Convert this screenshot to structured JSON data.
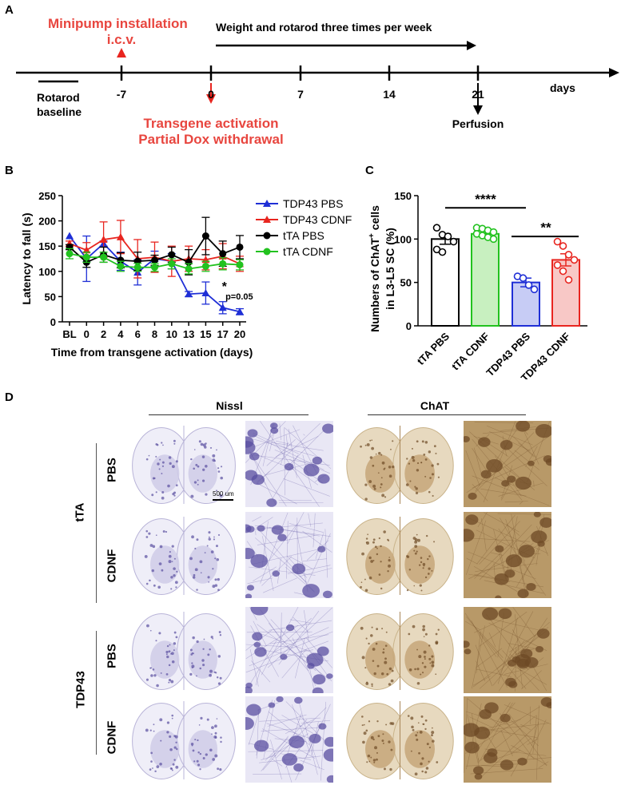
{
  "panels": {
    "a": "A",
    "b": "B",
    "c": "C",
    "d": "D"
  },
  "timeline": {
    "minipump_line1": "Minipump installation",
    "minipump_line2": "i.c.v.",
    "weight_rotarod": "Weight and rotarod three times per week",
    "ticks": [
      "-7",
      "0",
      "7",
      "14",
      "21"
    ],
    "days_label": "days",
    "baseline_line1": "Rotarod",
    "baseline_line2": "baseline",
    "transgene_line1": "Transgene activation",
    "transgene_line2": "Partial Dox withdrawal",
    "perfusion": "Perfusion",
    "red_color": "#e8463f"
  },
  "chart_data": [
    {
      "type": "line",
      "panel": "B",
      "xlabel": "Time from transgene activation (days)",
      "ylabel": "Latency to fall (s)",
      "categories": [
        "BL",
        "0",
        "2",
        "4",
        "6",
        "8",
        "10",
        "13",
        "15",
        "17",
        "20"
      ],
      "yticks": [
        "0",
        "50",
        "100",
        "150",
        "200",
        "250"
      ],
      "ylim": [
        0,
        250
      ],
      "legend_position": "right",
      "series": [
        {
          "name": "TDP43 PBS",
          "color": "#1f2fd6",
          "marker": "triangle",
          "values": [
            170,
            125,
            155,
            120,
            98,
            125,
            120,
            55,
            57,
            28,
            20
          ],
          "errors": [
            0,
            45,
            5,
            18,
            25,
            15,
            15,
            5,
            22,
            12,
            6
          ]
        },
        {
          "name": "TDP43 CDNF",
          "color": "#e8251f",
          "marker": "triangle",
          "values": [
            155,
            142,
            163,
            168,
            125,
            128,
            120,
            125,
            123,
            130,
            115
          ],
          "errors": [
            5,
            15,
            35,
            33,
            38,
            30,
            30,
            25,
            20,
            25,
            15
          ]
        },
        {
          "name": "tTA PBS",
          "color": "#000000",
          "marker": "circle",
          "values": [
            148,
            118,
            133,
            122,
            120,
            122,
            133,
            118,
            170,
            135,
            148
          ],
          "errors": [
            5,
            10,
            15,
            15,
            18,
            10,
            15,
            25,
            37,
            25,
            23
          ]
        },
        {
          "name": "tTA CDNF",
          "color": "#22c21f",
          "marker": "circle",
          "values": [
            135,
            128,
            128,
            110,
            108,
            108,
            115,
            105,
            110,
            115,
            113
          ],
          "errors": [
            10,
            10,
            10,
            10,
            8,
            8,
            10,
            10,
            10,
            12,
            10
          ]
        }
      ],
      "annotations": [
        {
          "text": "*",
          "at": "17"
        },
        {
          "text": "p=0.05",
          "at": "17-20"
        }
      ]
    },
    {
      "type": "bar",
      "panel": "C",
      "ylabel_line1": "Numbers of ChAT",
      "ylabel_sup": "+",
      "ylabel_rest": " cells",
      "ylabel_line2": "in L3-L5 SC (%)",
      "categories": [
        "tTA PBS",
        "tTA CDNF",
        "TDP43 PBS",
        "TDP43 CDNF"
      ],
      "values": [
        100,
        106,
        50,
        76
      ],
      "errors": [
        6,
        4,
        5,
        7
      ],
      "colors": [
        "#000000",
        "#22c21f",
        "#1f2fd6",
        "#e8251f"
      ],
      "fills": [
        "#ffffff",
        "#c8f0c0",
        "#c7ccf5",
        "#f8c8c6"
      ],
      "points": [
        [
          113,
          105,
          103,
          97,
          88,
          85
        ],
        [
          113,
          112,
          110,
          108,
          106,
          104,
          102,
          100
        ],
        [
          57,
          55,
          47,
          42
        ],
        [
          97,
          92,
          82,
          76,
          70,
          63,
          53
        ]
      ],
      "yticks": [
        "0",
        "50",
        "100",
        "150"
      ],
      "ylim": [
        0,
        150
      ],
      "significance": [
        {
          "label": "****",
          "from": "tTA PBS",
          "to": "TDP43 PBS"
        },
        {
          "label": "**",
          "from": "TDP43 PBS",
          "to": "TDP43 CDNF"
        }
      ]
    }
  ],
  "micrographs": {
    "nissl_title": "Nissl",
    "chat_title": "ChAT",
    "scale_bar": "500 um",
    "group_tta": "tTA",
    "group_tdp43": "TDP43",
    "row_labels": [
      "PBS",
      "CDNF",
      "PBS",
      "CDNF"
    ],
    "nissl_bg": "#efeef8",
    "nissl_stain": "#5a4fa0",
    "chat_bg": "#e7d9bf",
    "chat_stain": "#6e4a25",
    "chat_zoom_bg": "#b89968"
  }
}
